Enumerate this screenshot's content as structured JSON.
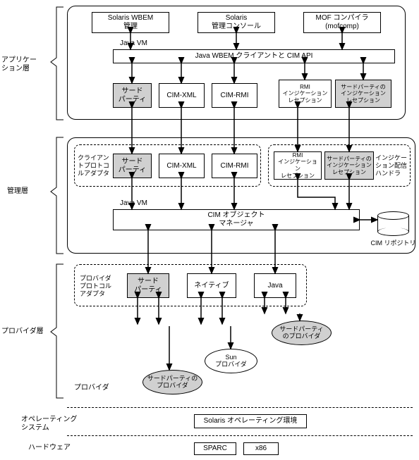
{
  "layers": {
    "app": "アプリケー\nション層",
    "mgmt": "管理層",
    "prov_layer": "プロバイダ層",
    "providers": "プロバイダ",
    "os": "オペレーティング\nシステム",
    "hw": "ハードウェア"
  },
  "top": {
    "solaris_wbem": "Solaris WBEM\n管理",
    "solaris_console": "Solaris\n管理コンソール",
    "mof": "MOF コンパイラ\n(mofcomp)",
    "java_vm": "Java VM",
    "wbem_api": "Java WBEM クライアントと CIM API",
    "third": "サード\nパーティ",
    "cimxml": "CIM-XML",
    "cimrmi": "CIM-RMI",
    "rmi_ind": "RMI\nインジケーション\nレセプション",
    "tp_ind": "サードパーティの\nインジケーション\nレセプション"
  },
  "mid": {
    "client_adapter": "クライアン\nトプロトコ\nルアダプタ",
    "ind_handler": "インジケー\nション配信\nハンドラ",
    "third": "サード\nパーティ",
    "cimxml": "CIM-XML",
    "cimrmi": "CIM-RMI",
    "rmi_ind": "RMI\nインジケーション\nレセプション",
    "tp_ind": "サードパーティの\nインジケーション\nレセプション",
    "java_vm": "Java VM",
    "cim_om": "CIM オブジェクト\nマネージャ",
    "repo": "CIM リポジトリ"
  },
  "prov": {
    "adapter": "プロバイダ\nプロトコル\nアダプタ",
    "third": "サード\nパーティ",
    "native": "ネイティブ",
    "java": "Java",
    "tp1": "サードパーティの\nプロバイダ",
    "sun": "Sun\nプロバイダ",
    "tp2": "サードパーティ\nのプロバイダ"
  },
  "os_env": "Solaris オペレーティング環境",
  "hw": {
    "sparc": "SPARC",
    "x86": "x86"
  },
  "colors": {
    "gray": "#d0d0d0",
    "bg": "#ffffff"
  }
}
